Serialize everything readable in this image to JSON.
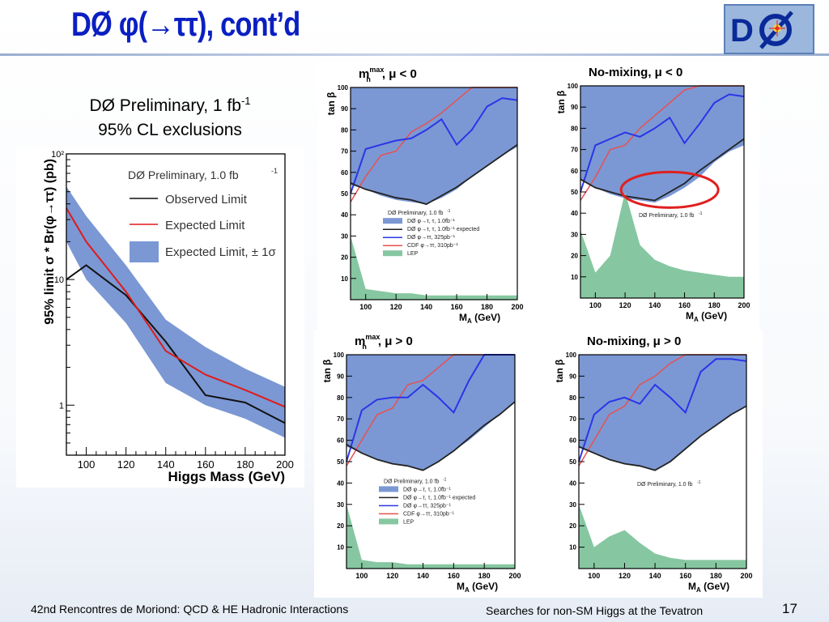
{
  "slide": {
    "title": "DØ φ(→ττ), cont’d",
    "caption_line1": "DØ Preliminary, 1 fb",
    "caption_line1_sup": "-1",
    "caption_line2": "95% CL exclusions",
    "footer_left": "42nd Rencontres de Moriond: QCD & HE Hadronic Interactions",
    "footer_center": "Searches for non-SM Higgs at the Tevatron",
    "page_number": "17",
    "colors": {
      "title": "#0a1fc2",
      "band": "#7b98d4",
      "lep": "#86c7a1",
      "cdf": "#e85050",
      "d0_325": "#2a35e8"
    }
  },
  "chart_data": [
    {
      "type": "line",
      "title": "",
      "xlabel": "Higgs Mass (GeV)",
      "ylabel": "95% limit σ * Br(φ→ττ) (pb)",
      "ylog": true,
      "xlim": [
        90,
        200
      ],
      "ylim": [
        0.4,
        100
      ],
      "xticks": [
        "100",
        "120",
        "140",
        "160",
        "180",
        "200"
      ],
      "yticks": [
        "1",
        "10",
        "10²"
      ],
      "x": [
        90,
        100,
        120,
        140,
        160,
        180,
        200
      ],
      "series": [
        {
          "name": "Observed Limit",
          "color": "#111111",
          "values": [
            10,
            13,
            7.5,
            3.2,
            1.2,
            1.05,
            0.72
          ]
        },
        {
          "name": "Expected Limit",
          "color": "#e01a1a",
          "values": [
            37,
            20,
            8,
            2.7,
            1.75,
            1.32,
            0.97
          ]
        }
      ],
      "band": {
        "name": "Expected Limit, ± 1σ",
        "color": "#7b98d4",
        "lower": [
          20,
          10,
          4.5,
          1.5,
          1.0,
          0.78,
          0.55
        ],
        "upper": [
          55,
          32,
          13,
          4.8,
          2.9,
          1.95,
          1.4
        ]
      },
      "legend_header": "DØ Preliminary, 1.0 fb",
      "legend_header_sup": "-1",
      "legend_entries": [
        "Observed Limit",
        "Expected Limit",
        "Expected Limit, ± 1σ"
      ]
    },
    {
      "type": "area",
      "title_m": "m",
      "title_sup": "max",
      "title_sub": "h",
      "title_rest": ", μ < 0",
      "xlabel": "M",
      "xlabel_sub": "A",
      "xlabel_rest": " (GeV)",
      "ylabel": "tan β",
      "xlim": [
        90,
        200
      ],
      "ylim": [
        0,
        100
      ],
      "x": [
        90,
        100,
        110,
        120,
        130,
        140,
        150,
        160,
        170,
        180,
        190,
        200
      ],
      "d0_excl_lower": [
        54,
        52,
        49,
        47,
        46,
        45,
        48,
        52,
        58,
        63,
        68,
        72
      ],
      "d0_expected": [
        55,
        52,
        50,
        48,
        47,
        45,
        49,
        53,
        58,
        63,
        68,
        73
      ],
      "d0_325": [
        50,
        71,
        73,
        75,
        76,
        80,
        85,
        73,
        80,
        91,
        95,
        94
      ],
      "cdf_310": [
        46,
        58,
        68,
        70,
        79,
        83,
        88,
        94,
        100,
        100,
        100,
        100
      ],
      "lep": [
        30,
        5,
        4,
        3,
        3,
        2,
        2,
        2,
        2,
        2,
        2,
        2
      ],
      "legend_header": "DØ Preliminary, 1.0 fb",
      "legend_header_sup": "-1",
      "legend_entries": [
        "DØ φ→τ, τ, 1.0fb⁻¹",
        "DØ φ→τ, τ, 1.0fb⁻¹ expected",
        "DØ φ→ττ, 325pb⁻¹",
        "CDF φ→ττ, 310pb⁻¹",
        "LEP"
      ],
      "xticks": [
        "100",
        "120",
        "140",
        "160",
        "180",
        "200"
      ],
      "yticks": [
        "10",
        "20",
        "30",
        "40",
        "50",
        "60",
        "70",
        "80",
        "90",
        "100"
      ]
    },
    {
      "type": "area",
      "title_m": "No-mixing",
      "title_rest": ", μ < 0",
      "xlabel": "M",
      "xlabel_sub": "A",
      "xlabel_rest": " (GeV)",
      "ylabel": "tan β",
      "xlim": [
        90,
        200
      ],
      "ylim": [
        0,
        100
      ],
      "x": [
        90,
        100,
        110,
        120,
        130,
        140,
        150,
        160,
        170,
        180,
        190,
        200
      ],
      "d0_excl_lower": [
        56,
        52,
        49,
        47,
        46,
        45,
        48,
        52,
        57,
        64,
        69,
        72
      ],
      "d0_expected": [
        56,
        52,
        50,
        48,
        47,
        46,
        50,
        54,
        60,
        65,
        70,
        75
      ],
      "d0_325": [
        50,
        72,
        75,
        78,
        76,
        80,
        85,
        73,
        82,
        92,
        96,
        95
      ],
      "cdf_310": [
        46,
        57,
        70,
        72,
        80,
        86,
        92,
        98,
        100,
        100,
        100,
        100
      ],
      "lep": [
        32,
        12,
        20,
        50,
        25,
        18,
        15,
        13,
        12,
        11,
        10,
        10
      ],
      "legend_header": "DØ Preliminary, 1.0 fb",
      "legend_header_sup": "-1",
      "xticks": [
        "100",
        "120",
        "140",
        "160",
        "180",
        "200"
      ],
      "yticks": [
        "10",
        "20",
        "30",
        "40",
        "50",
        "60",
        "70",
        "80",
        "90",
        "100"
      ]
    },
    {
      "type": "area",
      "title_m": "m",
      "title_sup": "max",
      "title_sub": "h",
      "title_rest": ", μ > 0",
      "xlabel": "M",
      "xlabel_sub": "A",
      "xlabel_rest": " (GeV)",
      "ylabel": "tan β",
      "xlim": [
        90,
        200
      ],
      "ylim": [
        0,
        100
      ],
      "x": [
        90,
        100,
        110,
        120,
        130,
        140,
        150,
        160,
        170,
        180,
        190,
        200
      ],
      "d0_excl_lower": [
        57,
        54,
        51,
        49,
        48,
        46,
        50,
        55,
        60,
        66,
        72,
        78
      ],
      "d0_expected": [
        58,
        54,
        51,
        49,
        48,
        46,
        50,
        55,
        61,
        67,
        72,
        78
      ],
      "d0_325": [
        50,
        74,
        79,
        80,
        80,
        86,
        80,
        73,
        88,
        100,
        100,
        100
      ],
      "cdf_310": [
        48,
        60,
        72,
        75,
        86,
        88,
        94,
        100,
        100,
        100,
        100,
        100
      ],
      "lep": [
        30,
        4,
        3,
        3,
        2,
        2,
        2,
        2,
        2,
        2,
        2,
        2
      ],
      "legend_header": "DØ Preliminary, 1.0 fb",
      "legend_header_sup": "-1",
      "legend_entries": [
        "DØ φ→τ, τ, 1.0fb⁻¹",
        "DØ φ→τ, τ, 1.0fb⁻¹ expected",
        "DØ φ→ττ, 325pb⁻¹",
        "CDF φ→ττ, 310pb⁻¹",
        "LEP"
      ],
      "xticks": [
        "100",
        "120",
        "140",
        "160",
        "180",
        "200"
      ],
      "yticks": [
        "10",
        "20",
        "30",
        "40",
        "50",
        "60",
        "70",
        "80",
        "90",
        "100"
      ]
    },
    {
      "type": "area",
      "title_m": "No-mixing",
      "title_rest": ", μ > 0",
      "xlabel": "M",
      "xlabel_sub": "A",
      "xlabel_rest": " (GeV)",
      "ylabel": "tan β",
      "xlim": [
        90,
        200
      ],
      "ylim": [
        0,
        100
      ],
      "x": [
        90,
        100,
        110,
        120,
        130,
        140,
        150,
        160,
        170,
        180,
        190,
        200
      ],
      "d0_excl_lower": [
        57,
        54,
        51,
        49,
        48,
        46,
        50,
        56,
        62,
        67,
        72,
        76
      ],
      "d0_expected": [
        57,
        54,
        51,
        49,
        48,
        46,
        50,
        56,
        62,
        67,
        72,
        76
      ],
      "d0_325": [
        50,
        72,
        78,
        80,
        77,
        86,
        80,
        73,
        92,
        98,
        98,
        97
      ],
      "cdf_310": [
        48,
        60,
        72,
        76,
        86,
        90,
        96,
        100,
        100,
        100,
        100,
        100
      ],
      "lep": [
        30,
        10,
        15,
        18,
        12,
        7,
        5,
        4,
        4,
        4,
        4,
        4
      ],
      "legend_header": "DØ Preliminary, 1.0 fb",
      "legend_header_sup": "-1",
      "xticks": [
        "100",
        "120",
        "140",
        "160",
        "180",
        "200"
      ],
      "yticks": [
        "10",
        "20",
        "30",
        "40",
        "50",
        "60",
        "70",
        "80",
        "90",
        "100"
      ]
    }
  ]
}
